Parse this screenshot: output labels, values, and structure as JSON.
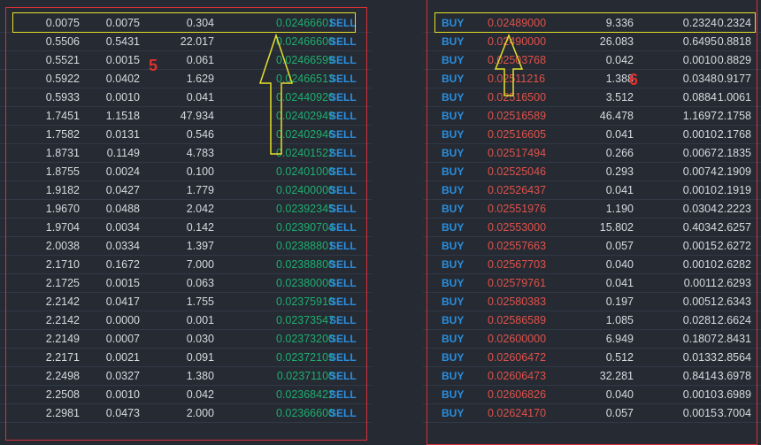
{
  "left_panel": {
    "section_label": "5",
    "rows": [
      {
        "a": "0.0075",
        "b": "0.0075",
        "c": "0.304",
        "price": "0.02466601",
        "side": "SELL"
      },
      {
        "a": "0.5506",
        "b": "0.5431",
        "c": "22.017",
        "price": "0.02466600",
        "side": "SELL"
      },
      {
        "a": "0.5521",
        "b": "0.0015",
        "c": "0.061",
        "price": "0.02466599",
        "side": "SELL"
      },
      {
        "a": "0.5922",
        "b": "0.0402",
        "c": "1.629",
        "price": "0.02466513",
        "side": "SELL"
      },
      {
        "a": "0.5933",
        "b": "0.0010",
        "c": "0.041",
        "price": "0.02440920",
        "side": "SELL"
      },
      {
        "a": "1.7451",
        "b": "1.1518",
        "c": "47.934",
        "price": "0.02402949",
        "side": "SELL"
      },
      {
        "a": "1.7582",
        "b": "0.0131",
        "c": "0.546",
        "price": "0.02402946",
        "side": "SELL"
      },
      {
        "a": "1.8731",
        "b": "0.1149",
        "c": "4.783",
        "price": "0.02401522",
        "side": "SELL"
      },
      {
        "a": "1.8755",
        "b": "0.0024",
        "c": "0.100",
        "price": "0.02401000",
        "side": "SELL"
      },
      {
        "a": "1.9182",
        "b": "0.0427",
        "c": "1.779",
        "price": "0.02400000",
        "side": "SELL"
      },
      {
        "a": "1.9670",
        "b": "0.0488",
        "c": "2.042",
        "price": "0.02392345",
        "side": "SELL"
      },
      {
        "a": "1.9704",
        "b": "0.0034",
        "c": "0.142",
        "price": "0.02390704",
        "side": "SELL"
      },
      {
        "a": "2.0038",
        "b": "0.0334",
        "c": "1.397",
        "price": "0.02388801",
        "side": "SELL"
      },
      {
        "a": "2.1710",
        "b": "0.1672",
        "c": "7.000",
        "price": "0.02388800",
        "side": "SELL"
      },
      {
        "a": "2.1725",
        "b": "0.0015",
        "c": "0.063",
        "price": "0.02380000",
        "side": "SELL"
      },
      {
        "a": "2.2142",
        "b": "0.0417",
        "c": "1.755",
        "price": "0.02375910",
        "side": "SELL"
      },
      {
        "a": "2.2142",
        "b": "0.0000",
        "c": "0.001",
        "price": "0.02373547",
        "side": "SELL"
      },
      {
        "a": "2.2149",
        "b": "0.0007",
        "c": "0.030",
        "price": "0.02373200",
        "side": "SELL"
      },
      {
        "a": "2.2171",
        "b": "0.0021",
        "c": "0.091",
        "price": "0.02372109",
        "side": "SELL"
      },
      {
        "a": "2.2498",
        "b": "0.0327",
        "c": "1.380",
        "price": "0.02371100",
        "side": "SELL"
      },
      {
        "a": "2.2508",
        "b": "0.0010",
        "c": "0.042",
        "price": "0.02368422",
        "side": "SELL"
      },
      {
        "a": "2.2981",
        "b": "0.0473",
        "c": "2.000",
        "price": "0.02366600",
        "side": "SELL"
      }
    ]
  },
  "right_panel": {
    "section_label": "6",
    "rows": [
      {
        "side": "BUY",
        "price": "0.02489000",
        "c": "9.336",
        "b": "0.2324",
        "a": "0.2324"
      },
      {
        "side": "BUY",
        "price": "0.02490000",
        "c": "26.083",
        "b": "0.6495",
        "a": "0.8818"
      },
      {
        "side": "BUY",
        "price": "0.02503768",
        "c": "0.042",
        "b": "0.0010",
        "a": "0.8829"
      },
      {
        "side": "BUY",
        "price": "0.02511216",
        "c": "1.388",
        "b": "0.0348",
        "a": "0.9177"
      },
      {
        "side": "BUY",
        "price": "0.02516500",
        "c": "3.512",
        "b": "0.0884",
        "a": "1.0061"
      },
      {
        "side": "BUY",
        "price": "0.02516589",
        "c": "46.478",
        "b": "1.1697",
        "a": "2.1758"
      },
      {
        "side": "BUY",
        "price": "0.02516605",
        "c": "0.041",
        "b": "0.0010",
        "a": "2.1768"
      },
      {
        "side": "BUY",
        "price": "0.02517494",
        "c": "0.266",
        "b": "0.0067",
        "a": "2.1835"
      },
      {
        "side": "BUY",
        "price": "0.02525046",
        "c": "0.293",
        "b": "0.0074",
        "a": "2.1909"
      },
      {
        "side": "BUY",
        "price": "0.02526437",
        "c": "0.041",
        "b": "0.0010",
        "a": "2.1919"
      },
      {
        "side": "BUY",
        "price": "0.02551976",
        "c": "1.190",
        "b": "0.0304",
        "a": "2.2223"
      },
      {
        "side": "BUY",
        "price": "0.02553000",
        "c": "15.802",
        "b": "0.4034",
        "a": "2.6257"
      },
      {
        "side": "BUY",
        "price": "0.02557663",
        "c": "0.057",
        "b": "0.0015",
        "a": "2.6272"
      },
      {
        "side": "BUY",
        "price": "0.02567703",
        "c": "0.040",
        "b": "0.0010",
        "a": "2.6282"
      },
      {
        "side": "BUY",
        "price": "0.02579761",
        "c": "0.041",
        "b": "0.0011",
        "a": "2.6293"
      },
      {
        "side": "BUY",
        "price": "0.02580383",
        "c": "0.197",
        "b": "0.0051",
        "a": "2.6343"
      },
      {
        "side": "BUY",
        "price": "0.02586589",
        "c": "1.085",
        "b": "0.0281",
        "a": "2.6624"
      },
      {
        "side": "BUY",
        "price": "0.02600000",
        "c": "6.949",
        "b": "0.1807",
        "a": "2.8431"
      },
      {
        "side": "BUY",
        "price": "0.02606472",
        "c": "0.512",
        "b": "0.0133",
        "a": "2.8564"
      },
      {
        "side": "BUY",
        "price": "0.02606473",
        "c": "32.281",
        "b": "0.8414",
        "a": "3.6978"
      },
      {
        "side": "BUY",
        "price": "0.02606826",
        "c": "0.040",
        "b": "0.0010",
        "a": "3.6989"
      },
      {
        "side": "BUY",
        "price": "0.02624170",
        "c": "0.057",
        "b": "0.0015",
        "a": "3.7004"
      }
    ]
  },
  "colors": {
    "background": "#252a33",
    "sell_price": "#1fae6f",
    "buy_price": "#e0524a",
    "side_label": "#2a8fe0",
    "highlight": "#e6e02a",
    "frame": "#d8303a"
  },
  "icons": {
    "annotation_arrow": "up-arrow-icon"
  }
}
